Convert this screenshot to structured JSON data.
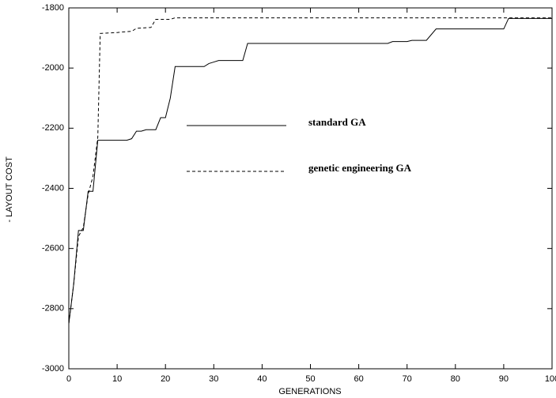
{
  "chart_data": {
    "type": "line",
    "xlabel": "GENERATIONS",
    "ylabel": "- LAYOUT COST",
    "xlim": [
      0,
      100
    ],
    "xticks": [
      0,
      10,
      20,
      30,
      40,
      50,
      60,
      70,
      80,
      90,
      100
    ],
    "ylim": [
      -3000,
      -1800
    ],
    "yticks": [
      -3000,
      -2800,
      -2600,
      -2400,
      -2200,
      -2000,
      -1800
    ],
    "series": [
      {
        "name": "standard GA",
        "color": "#000000",
        "line_style": "solid",
        "x": [
          0,
          1,
          2,
          3,
          4,
          5,
          6,
          12,
          13,
          14,
          15,
          16,
          18,
          19,
          20,
          21,
          22,
          28,
          29,
          30,
          31,
          36,
          37,
          66,
          67,
          70,
          71,
          74,
          76,
          90,
          91,
          100
        ],
        "values": [
          -2850,
          -2720,
          -2540,
          -2540,
          -2410,
          -2410,
          -2240,
          -2240,
          -2235,
          -2210,
          -2210,
          -2205,
          -2205,
          -2165,
          -2165,
          -2100,
          -1995,
          -1995,
          -1985,
          -1980,
          -1975,
          -1975,
          -1918,
          -1918,
          -1912,
          -1912,
          -1908,
          -1908,
          -1870,
          -1870,
          -1835,
          -1835
        ]
      },
      {
        "name": "genetic engineering GA",
        "color": "#000000",
        "line_style": "dashed",
        "x": [
          0,
          1,
          2,
          3,
          4,
          5,
          6,
          6.5,
          10,
          11,
          13,
          14,
          16,
          17,
          18,
          21,
          22,
          100
        ],
        "values": [
          -2850,
          -2720,
          -2560,
          -2530,
          -2420,
          -2360,
          -2230,
          -1885,
          -1882,
          -1880,
          -1878,
          -1868,
          -1866,
          -1865,
          -1838,
          -1838,
          -1833,
          -1833
        ]
      }
    ]
  }
}
